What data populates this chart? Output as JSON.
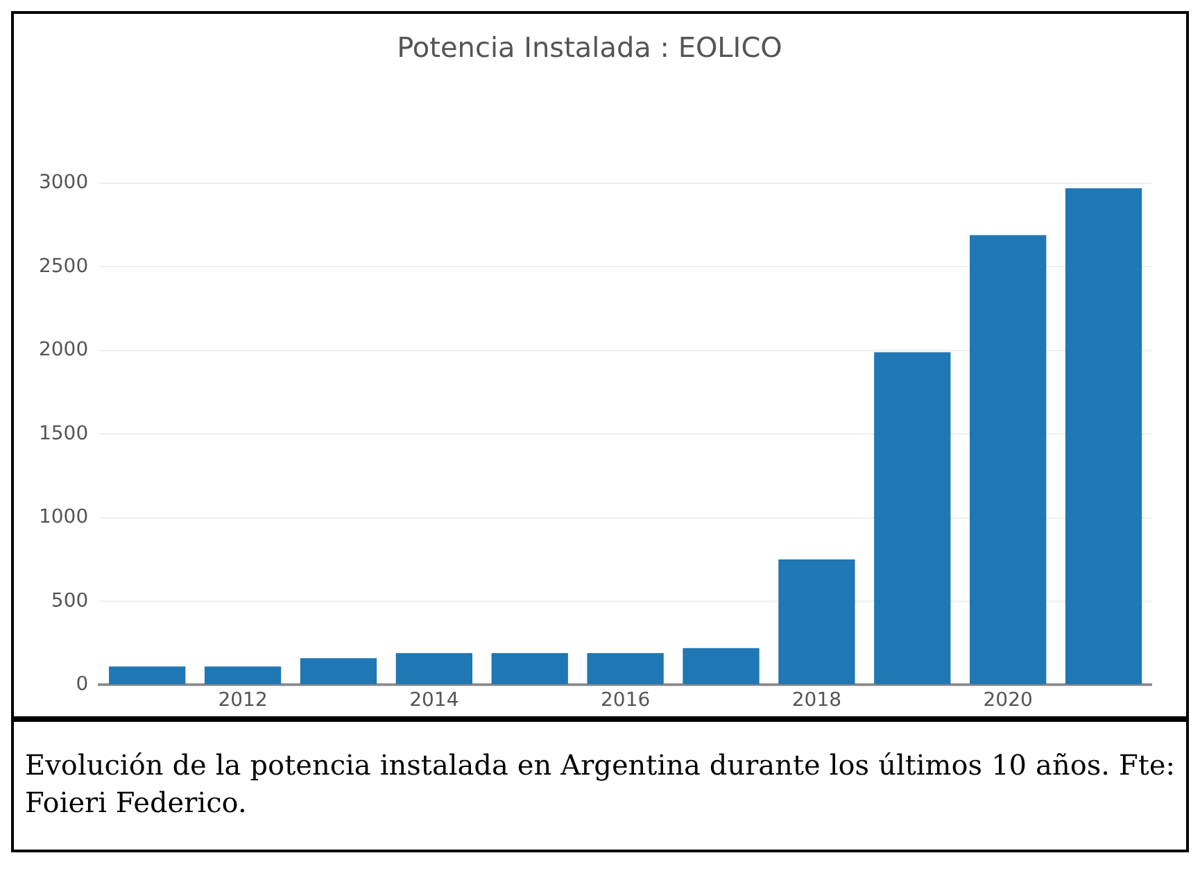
{
  "chart_data": {
    "type": "bar",
    "title": "Potencia Instalada : EOLICO",
    "categories": [
      null,
      "2012",
      null,
      "2014",
      null,
      "2016",
      null,
      "2018",
      null,
      "2020",
      null
    ],
    "values": [
      110,
      110,
      160,
      190,
      190,
      190,
      220,
      750,
      1990,
      2690,
      2970
    ],
    "color": "#1f77b4",
    "ylim": [
      0,
      3000
    ],
    "yticks": [
      0,
      500,
      1000,
      1500,
      2000,
      2500,
      3000
    ],
    "grid": "y",
    "legend": false,
    "annotations": [
      "Evolución de la potencia instalada en Argentina durante los últimos 10 años. Fte: Foieri Federico."
    ]
  }
}
